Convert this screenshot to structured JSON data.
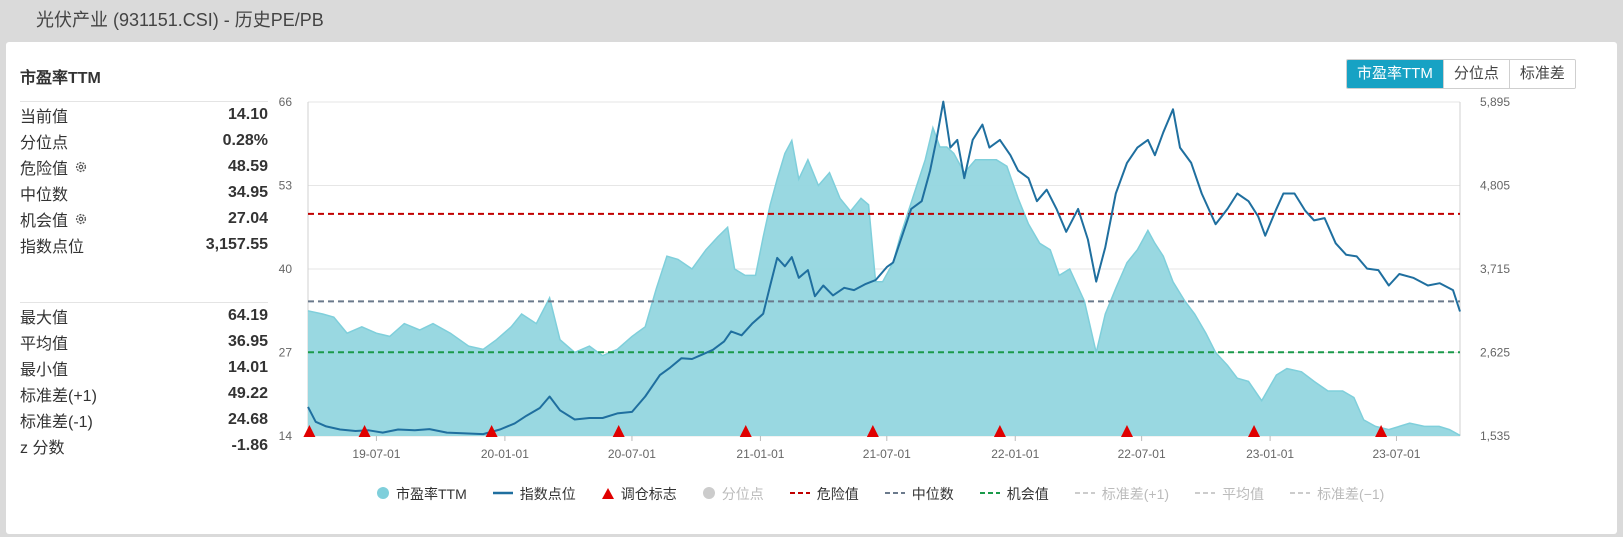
{
  "page": {
    "title": "光伏产业 (931151.CSI) - 历史PE/PB"
  },
  "panel": {
    "title": "市盈率TTM",
    "stats_top": [
      {
        "label": "当前值",
        "value": "14.10",
        "gear": false
      },
      {
        "label": "分位点",
        "value": "0.28%",
        "gear": false
      },
      {
        "label": "危险值",
        "value": "48.59",
        "gear": true
      },
      {
        "label": "中位数",
        "value": "34.95",
        "gear": false
      },
      {
        "label": "机会值",
        "value": "27.04",
        "gear": true
      },
      {
        "label": "指数点位",
        "value": "3,157.55",
        "gear": false
      }
    ],
    "stats_bottom": [
      {
        "label": "最大值",
        "value": "64.19"
      },
      {
        "label": "平均值",
        "value": "36.95"
      },
      {
        "label": "最小值",
        "value": "14.01"
      },
      {
        "label": "标准差(+1)",
        "value": "49.22"
      },
      {
        "label": "标准差(-1)",
        "value": "24.68"
      },
      {
        "label": "z 分数",
        "value": "-1.86"
      }
    ]
  },
  "toggle": {
    "options": [
      "市盈率TTM",
      "分位点",
      "标准差"
    ],
    "active": 0
  },
  "legend": [
    {
      "label": "市盈率TTM",
      "kind": "dot",
      "color": "#7fcfdb",
      "muted": false
    },
    {
      "label": "指数点位",
      "kind": "line",
      "color": "#1f6f9f",
      "muted": false
    },
    {
      "label": "调仓标志",
      "kind": "triangle",
      "color": "#e00000",
      "muted": false
    },
    {
      "label": "分位点",
      "kind": "dot",
      "color": "#cccccc",
      "muted": true
    },
    {
      "label": "危险值",
      "kind": "dash",
      "color": "#c00000",
      "muted": false
    },
    {
      "label": "中位数",
      "kind": "dash",
      "color": "#6b7a8c",
      "muted": false
    },
    {
      "label": "机会值",
      "kind": "dash",
      "color": "#1a9a4a",
      "muted": false
    },
    {
      "label": "标准差(+1)",
      "kind": "dash",
      "color": "#cccccc",
      "muted": true
    },
    {
      "label": "平均值",
      "kind": "dash",
      "color": "#cccccc",
      "muted": true
    },
    {
      "label": "标准差(−1)",
      "kind": "dash",
      "color": "#cccccc",
      "muted": true
    }
  ],
  "chart_data": {
    "type": "area",
    "title": "",
    "x_range": [
      "2019-03-25",
      "2023-09-30"
    ],
    "x_ticks": [
      "19-07-01",
      "20-01-01",
      "20-07-01",
      "21-01-01",
      "21-07-01",
      "22-01-01",
      "22-07-01",
      "23-01-01",
      "23-07-01"
    ],
    "y_left": {
      "ticks": [
        "14",
        "27",
        "40",
        "53",
        "66"
      ],
      "range": [
        14,
        66
      ]
    },
    "y_right": {
      "ticks": [
        "1,535",
        "2,625",
        "3,715",
        "4,805",
        "5,895"
      ],
      "range": [
        1535,
        5895
      ]
    },
    "reference_lines": [
      {
        "name": "危险值",
        "value": 48.59,
        "color": "#c00000"
      },
      {
        "name": "中位数",
        "value": 34.95,
        "color": "#6b7a8c"
      },
      {
        "name": "机会值",
        "value": 27.04,
        "color": "#1a9a4a"
      }
    ],
    "series": [
      {
        "name": "市盈率TTM",
        "axis": "left",
        "color": "#7fcfdb",
        "points": [
          [
            "2019-03-25",
            33.5
          ],
          [
            "2019-04-15",
            33
          ],
          [
            "2019-05-01",
            32.5
          ],
          [
            "2019-05-20",
            30
          ],
          [
            "2019-06-10",
            31
          ],
          [
            "2019-07-01",
            30
          ],
          [
            "2019-07-20",
            29.5
          ],
          [
            "2019-08-10",
            31.5
          ],
          [
            "2019-09-01",
            30.5
          ],
          [
            "2019-09-20",
            31.5
          ],
          [
            "2019-10-15",
            30
          ],
          [
            "2019-11-10",
            28
          ],
          [
            "2019-12-01",
            27.5
          ],
          [
            "2019-12-20",
            29
          ],
          [
            "2020-01-10",
            31
          ],
          [
            "2020-01-25",
            33
          ],
          [
            "2020-02-15",
            31.5
          ],
          [
            "2020-03-05",
            35.5
          ],
          [
            "2020-03-20",
            29
          ],
          [
            "2020-04-10",
            27
          ],
          [
            "2020-05-01",
            28
          ],
          [
            "2020-05-20",
            26.5
          ],
          [
            "2020-06-10",
            27.5
          ],
          [
            "2020-07-01",
            29.5
          ],
          [
            "2020-07-20",
            31
          ],
          [
            "2020-08-05",
            37
          ],
          [
            "2020-08-20",
            42
          ],
          [
            "2020-09-05",
            41.5
          ],
          [
            "2020-09-25",
            40
          ],
          [
            "2020-10-15",
            43
          ],
          [
            "2020-11-01",
            45
          ],
          [
            "2020-11-15",
            46.5
          ],
          [
            "2020-11-25",
            40
          ],
          [
            "2020-12-10",
            39
          ],
          [
            "2020-12-25",
            39
          ],
          [
            "2021-01-05",
            45
          ],
          [
            "2021-01-15",
            50
          ],
          [
            "2021-01-25",
            54
          ],
          [
            "2021-02-05",
            58
          ],
          [
            "2021-02-15",
            60
          ],
          [
            "2021-02-25",
            54
          ],
          [
            "2021-03-10",
            57
          ],
          [
            "2021-03-25",
            53
          ],
          [
            "2021-04-10",
            55
          ],
          [
            "2021-04-25",
            51
          ],
          [
            "2021-05-10",
            49
          ],
          [
            "2021-05-25",
            51
          ],
          [
            "2021-06-05",
            50
          ],
          [
            "2021-06-15",
            38
          ],
          [
            "2021-06-25",
            38
          ],
          [
            "2021-07-10",
            41
          ],
          [
            "2021-07-20",
            45
          ],
          [
            "2021-08-01",
            49
          ],
          [
            "2021-08-10",
            52
          ],
          [
            "2021-08-25",
            57
          ],
          [
            "2021-09-05",
            62
          ],
          [
            "2021-09-15",
            59
          ],
          [
            "2021-09-25",
            59
          ],
          [
            "2021-10-05",
            58
          ],
          [
            "2021-10-20",
            55
          ],
          [
            "2021-11-05",
            57
          ],
          [
            "2021-11-20",
            57
          ],
          [
            "2021-12-05",
            57
          ],
          [
            "2021-12-20",
            56
          ],
          [
            "2022-01-05",
            51
          ],
          [
            "2022-01-20",
            47
          ],
          [
            "2022-02-05",
            44
          ],
          [
            "2022-02-20",
            43
          ],
          [
            "2022-03-05",
            39
          ],
          [
            "2022-03-20",
            40
          ],
          [
            "2022-04-10",
            35
          ],
          [
            "2022-04-27",
            27
          ],
          [
            "2022-05-10",
            33
          ],
          [
            "2022-05-25",
            37
          ],
          [
            "2022-06-10",
            41
          ],
          [
            "2022-06-25",
            43
          ],
          [
            "2022-07-10",
            46
          ],
          [
            "2022-07-20",
            44
          ],
          [
            "2022-08-01",
            42
          ],
          [
            "2022-08-15",
            38
          ],
          [
            "2022-09-01",
            35
          ],
          [
            "2022-09-15",
            33
          ],
          [
            "2022-10-01",
            30
          ],
          [
            "2022-10-15",
            27
          ],
          [
            "2022-11-01",
            25
          ],
          [
            "2022-11-15",
            23
          ],
          [
            "2022-12-01",
            22.5
          ],
          [
            "2022-12-20",
            19.5
          ],
          [
            "2023-01-10",
            23.5
          ],
          [
            "2023-01-25",
            24.5
          ],
          [
            "2023-02-15",
            24
          ],
          [
            "2023-03-05",
            22.5
          ],
          [
            "2023-03-25",
            21
          ],
          [
            "2023-04-15",
            21
          ],
          [
            "2023-05-01",
            20
          ],
          [
            "2023-05-15",
            16.5
          ],
          [
            "2023-06-01",
            15.5
          ],
          [
            "2023-06-20",
            15
          ],
          [
            "2023-07-05",
            15.5
          ],
          [
            "2023-07-20",
            16
          ],
          [
            "2023-08-10",
            15.5
          ],
          [
            "2023-08-31",
            15.5
          ],
          [
            "2023-09-15",
            15
          ],
          [
            "2023-09-30",
            14.1
          ]
        ]
      },
      {
        "name": "指数点位",
        "axis": "right",
        "color": "#1f6f9f",
        "points": [
          [
            "2019-03-25",
            1915
          ],
          [
            "2019-04-05",
            1720
          ],
          [
            "2019-04-20",
            1660
          ],
          [
            "2019-05-10",
            1620
          ],
          [
            "2019-06-01",
            1600
          ],
          [
            "2019-06-20",
            1610
          ],
          [
            "2019-07-10",
            1580
          ],
          [
            "2019-08-01",
            1620
          ],
          [
            "2019-08-25",
            1610
          ],
          [
            "2019-09-15",
            1625
          ],
          [
            "2019-10-10",
            1580
          ],
          [
            "2019-11-01",
            1570
          ],
          [
            "2019-12-01",
            1560
          ],
          [
            "2019-12-25",
            1620
          ],
          [
            "2020-01-15",
            1700
          ],
          [
            "2020-02-01",
            1800
          ],
          [
            "2020-02-20",
            1900
          ],
          [
            "2020-03-05",
            2050
          ],
          [
            "2020-03-20",
            1870
          ],
          [
            "2020-04-10",
            1750
          ],
          [
            "2020-05-01",
            1770
          ],
          [
            "2020-05-20",
            1770
          ],
          [
            "2020-06-10",
            1830
          ],
          [
            "2020-07-01",
            1850
          ],
          [
            "2020-07-20",
            2050
          ],
          [
            "2020-08-10",
            2330
          ],
          [
            "2020-08-25",
            2430
          ],
          [
            "2020-09-10",
            2550
          ],
          [
            "2020-09-25",
            2540
          ],
          [
            "2020-10-10",
            2600
          ],
          [
            "2020-10-25",
            2660
          ],
          [
            "2020-11-10",
            2770
          ],
          [
            "2020-11-20",
            2900
          ],
          [
            "2020-12-05",
            2850
          ],
          [
            "2020-12-20",
            3000
          ],
          [
            "2021-01-05",
            3130
          ],
          [
            "2021-01-15",
            3500
          ],
          [
            "2021-01-25",
            3860
          ],
          [
            "2021-02-05",
            3750
          ],
          [
            "2021-02-15",
            3870
          ],
          [
            "2021-02-25",
            3600
          ],
          [
            "2021-03-10",
            3700
          ],
          [
            "2021-03-20",
            3360
          ],
          [
            "2021-04-01",
            3500
          ],
          [
            "2021-04-15",
            3370
          ],
          [
            "2021-05-01",
            3470
          ],
          [
            "2021-05-15",
            3440
          ],
          [
            "2021-06-01",
            3520
          ],
          [
            "2021-06-15",
            3570
          ],
          [
            "2021-07-01",
            3740
          ],
          [
            "2021-07-10",
            3800
          ],
          [
            "2021-07-25",
            4200
          ],
          [
            "2021-08-05",
            4500
          ],
          [
            "2021-08-20",
            4600
          ],
          [
            "2021-09-01",
            5000
          ],
          [
            "2021-09-10",
            5400
          ],
          [
            "2021-09-20",
            5900
          ],
          [
            "2021-09-30",
            5300
          ],
          [
            "2021-10-10",
            5400
          ],
          [
            "2021-10-20",
            4900
          ],
          [
            "2021-11-01",
            5400
          ],
          [
            "2021-11-15",
            5600
          ],
          [
            "2021-11-25",
            5300
          ],
          [
            "2021-12-10",
            5400
          ],
          [
            "2021-12-25",
            5200
          ],
          [
            "2022-01-05",
            5000
          ],
          [
            "2022-01-20",
            4900
          ],
          [
            "2022-02-01",
            4600
          ],
          [
            "2022-02-15",
            4750
          ],
          [
            "2022-03-01",
            4500
          ],
          [
            "2022-03-15",
            4200
          ],
          [
            "2022-04-01",
            4500
          ],
          [
            "2022-04-15",
            4100
          ],
          [
            "2022-04-27",
            3550
          ],
          [
            "2022-05-10",
            4000
          ],
          [
            "2022-05-25",
            4700
          ],
          [
            "2022-06-10",
            5100
          ],
          [
            "2022-06-25",
            5300
          ],
          [
            "2022-07-10",
            5400
          ],
          [
            "2022-07-20",
            5200
          ],
          [
            "2022-08-01",
            5500
          ],
          [
            "2022-08-15",
            5800
          ],
          [
            "2022-08-25",
            5300
          ],
          [
            "2022-09-10",
            5100
          ],
          [
            "2022-09-25",
            4700
          ],
          [
            "2022-10-15",
            4300
          ],
          [
            "2022-11-01",
            4500
          ],
          [
            "2022-11-15",
            4700
          ],
          [
            "2022-12-01",
            4600
          ],
          [
            "2022-12-15",
            4400
          ],
          [
            "2022-12-25",
            4150
          ],
          [
            "2023-01-10",
            4500
          ],
          [
            "2023-01-20",
            4700
          ],
          [
            "2023-02-05",
            4700
          ],
          [
            "2023-02-20",
            4480
          ],
          [
            "2023-03-05",
            4350
          ],
          [
            "2023-03-20",
            4380
          ],
          [
            "2023-04-05",
            4050
          ],
          [
            "2023-04-20",
            3900
          ],
          [
            "2023-05-05",
            3880
          ],
          [
            "2023-05-20",
            3720
          ],
          [
            "2023-06-05",
            3700
          ],
          [
            "2023-06-20",
            3500
          ],
          [
            "2023-07-05",
            3650
          ],
          [
            "2023-07-25",
            3600
          ],
          [
            "2023-08-15",
            3500
          ],
          [
            "2023-09-01",
            3530
          ],
          [
            "2023-09-20",
            3440
          ],
          [
            "2023-09-30",
            3160
          ]
        ]
      }
    ],
    "rebalance_markers": [
      "2019-03-27",
      "2019-06-14",
      "2019-12-13",
      "2020-06-12",
      "2020-12-11",
      "2021-06-11",
      "2021-12-10",
      "2022-06-10",
      "2022-12-09",
      "2023-06-09"
    ]
  }
}
